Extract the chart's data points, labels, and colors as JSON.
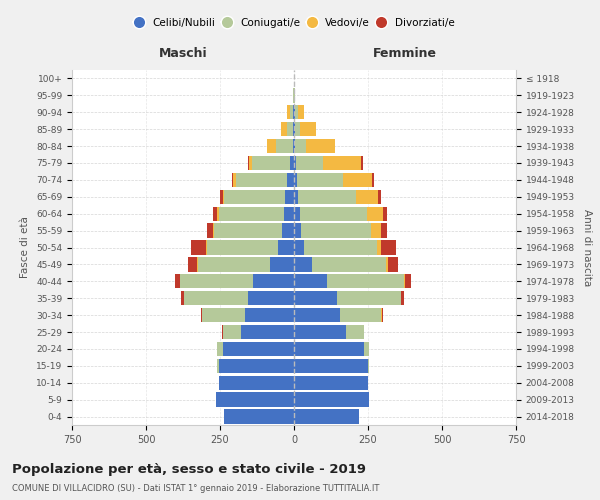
{
  "age_groups": [
    "0-4",
    "5-9",
    "10-14",
    "15-19",
    "20-24",
    "25-29",
    "30-34",
    "35-39",
    "40-44",
    "45-49",
    "50-54",
    "55-59",
    "60-64",
    "65-69",
    "70-74",
    "75-79",
    "80-84",
    "85-89",
    "90-94",
    "95-99",
    "100+"
  ],
  "birth_years": [
    "2014-2018",
    "2009-2013",
    "2004-2008",
    "1999-2003",
    "1994-1998",
    "1989-1993",
    "1984-1988",
    "1979-1983",
    "1974-1978",
    "1969-1973",
    "1964-1968",
    "1959-1963",
    "1954-1958",
    "1949-1953",
    "1944-1948",
    "1939-1943",
    "1934-1938",
    "1929-1933",
    "1924-1928",
    "1919-1923",
    "≤ 1918"
  ],
  "male": {
    "celibi": [
      235,
      265,
      255,
      255,
      240,
      180,
      165,
      155,
      140,
      80,
      55,
      40,
      35,
      30,
      22,
      12,
      5,
      3,
      2,
      0,
      0
    ],
    "coniugati": [
      0,
      0,
      0,
      5,
      20,
      60,
      145,
      215,
      245,
      245,
      240,
      230,
      220,
      205,
      175,
      130,
      55,
      20,
      12,
      3,
      1
    ],
    "vedovi": [
      0,
      0,
      0,
      0,
      0,
      0,
      0,
      0,
      1,
      2,
      2,
      3,
      4,
      5,
      8,
      10,
      30,
      20,
      8,
      1,
      0
    ],
    "divorziati": [
      0,
      0,
      0,
      0,
      0,
      2,
      5,
      12,
      15,
      30,
      50,
      20,
      15,
      10,
      5,
      5,
      2,
      0,
      0,
      0,
      0
    ]
  },
  "female": {
    "nubili": [
      220,
      255,
      250,
      250,
      235,
      175,
      155,
      145,
      110,
      60,
      35,
      25,
      20,
      15,
      10,
      8,
      5,
      4,
      3,
      0,
      0
    ],
    "coniugate": [
      0,
      0,
      0,
      4,
      18,
      60,
      140,
      215,
      260,
      250,
      245,
      235,
      225,
      195,
      155,
      90,
      35,
      15,
      10,
      3,
      1
    ],
    "vedove": [
      0,
      0,
      0,
      0,
      0,
      0,
      1,
      2,
      5,
      8,
      15,
      35,
      55,
      75,
      100,
      130,
      100,
      55,
      20,
      2,
      0
    ],
    "divorziate": [
      0,
      0,
      0,
      0,
      0,
      1,
      4,
      8,
      20,
      35,
      50,
      20,
      15,
      10,
      5,
      5,
      0,
      0,
      0,
      0,
      0
    ]
  },
  "colors": {
    "celibi": "#4472C4",
    "coniugati": "#B5C99A",
    "vedovi": "#F4B942",
    "divorziati": "#C0392B"
  },
  "title": "Popolazione per età, sesso e stato civile - 2019",
  "subtitle": "COMUNE DI VILLACIDRO (SU) - Dati ISTAT 1° gennaio 2019 - Elaborazione TUTTITALIA.IT",
  "xlabel_left": "Maschi",
  "xlabel_right": "Femmine",
  "ylabel_left": "Fasce di età",
  "ylabel_right": "Anni di nascita",
  "xlim": 750,
  "legend_labels": [
    "Celibi/Nubili",
    "Coniugati/e",
    "Vedovi/e",
    "Divorziati/e"
  ],
  "bg_color": "#f0f0f0",
  "plot_bg_color": "#ffffff"
}
